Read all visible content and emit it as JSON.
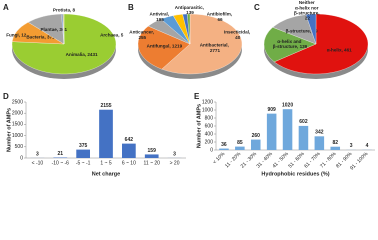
{
  "chart_data": [
    {
      "type": "pie",
      "label": "A",
      "values": [
        2431,
        371,
        361,
        12,
        8,
        5
      ],
      "value_labels": [
        "Animalia, 2431",
        "Bacteria, 371",
        "Plantae, 361",
        "Fungi, 12",
        "Protista, 8",
        "Archaea, 5"
      ],
      "colors": [
        "#9acd32",
        "#f39c32",
        "#a6a6a6",
        "#4472c4",
        "#ffc000",
        "#5b9bd5"
      ]
    },
    {
      "type": "pie",
      "label": "B",
      "values": [
        2771,
        1219,
        255,
        195,
        139,
        66,
        40
      ],
      "value_labels": [
        "Antibacterial, 2771",
        "Antifungal, 1219",
        "Anticancer, 255",
        "Antiviral, 195",
        "Antiparasitic, 139",
        "Antibiofilm, 66",
        "Insecticidal, 40"
      ],
      "colors": [
        "#f4b183",
        "#ed7d31",
        "#a5a5a5",
        "#5b9bd5",
        "#ffc000",
        "#4472c4",
        "#70ad47"
      ]
    },
    {
      "type": "pie",
      "label": "C",
      "values": [
        461,
        139,
        89,
        22
      ],
      "value_labels": [
        "α-helix, 461",
        "α-helix and β-structure, 139",
        "β-structure, 89",
        "Neither α-helix nor β-structure, 22"
      ],
      "colors": [
        "#e0120f",
        "#70ad47",
        "#a5a5a5",
        "#4472c4"
      ]
    },
    {
      "type": "bar",
      "label": "D",
      "categories": [
        "< -10",
        "-10 ~ -6",
        "-5 ~ -1",
        "1 ~ 5",
        "6 ~ 10",
        "11 ~ 20",
        "> 20"
      ],
      "values": [
        3,
        21,
        375,
        2155,
        642,
        159,
        3
      ],
      "color": "#4472c4",
      "ylim": [
        0,
        2500
      ],
      "yticks": [
        0,
        500,
        1000,
        1500,
        2000,
        2500
      ],
      "xlabel": "Net charge",
      "ylabel": "Number of AMPs"
    },
    {
      "type": "bar",
      "label": "E",
      "categories": [
        "< 10%",
        "11 - 20%",
        "21 - 30%",
        "31 - 40%",
        "41 - 50%",
        "51 - 60%",
        "61 - 70%",
        "71 - 80%",
        "81 - 90%",
        "91 - 100%"
      ],
      "values": [
        36,
        85,
        260,
        909,
        1020,
        602,
        342,
        82,
        3,
        4
      ],
      "color": "#6fa8dc",
      "ylim": [
        0,
        1200
      ],
      "yticks": [
        0,
        200,
        400,
        600,
        800,
        1000,
        1200
      ],
      "xlabel": "Hydrophobic residues (%)",
      "ylabel": "Number of AMPs"
    }
  ]
}
